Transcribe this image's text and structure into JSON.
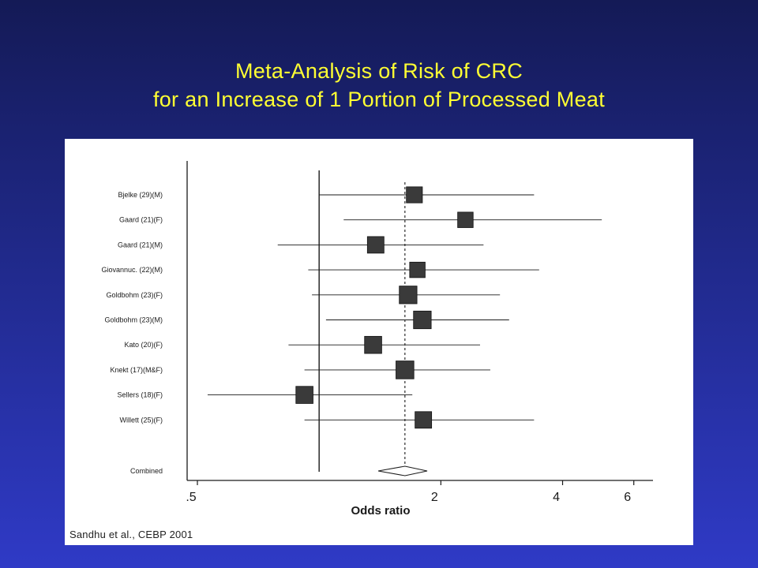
{
  "slide": {
    "title_line1": "Meta-Analysis of Risk of CRC",
    "title_line2": "for an Increase of 1 Portion of Processed Meat",
    "citation": "Sandhu et al., CEBP 2001"
  },
  "colors": {
    "title": "#ffff33",
    "background_top": "#141a56",
    "background_bottom": "#2f3ac6",
    "panel": "#ffffff",
    "ink": "#1a1a1a",
    "marker": "#3a3a3a"
  },
  "chart_data": {
    "type": "forest",
    "scale": "log",
    "xlabel": "Odds ratio",
    "xticks": [
      ".5",
      "2",
      "4",
      "6"
    ],
    "xtick_values": [
      0.5,
      2,
      4,
      6
    ],
    "xlim": [
      0.5,
      6.2
    ],
    "null_line": 1,
    "pooled_estimate": 1.63,
    "studies": [
      {
        "label": "Bjelke (29)(M)",
        "or": 1.72,
        "lo": 1.0,
        "hi": 3.4,
        "weight": 0.45
      },
      {
        "label": "Gaard (21)(F)",
        "or": 2.3,
        "lo": 1.15,
        "hi": 5.0,
        "weight": 0.4
      },
      {
        "label": "Gaard (21)(M)",
        "or": 1.38,
        "lo": 0.79,
        "hi": 2.55,
        "weight": 0.5
      },
      {
        "label": "Giovannuc. (22)(M)",
        "or": 1.75,
        "lo": 0.94,
        "hi": 3.5,
        "weight": 0.4
      },
      {
        "label": "Goldbohm (23)(F)",
        "or": 1.66,
        "lo": 0.96,
        "hi": 2.8,
        "weight": 0.6
      },
      {
        "label": "Goldbohm (23)(M)",
        "or": 1.8,
        "lo": 1.04,
        "hi": 2.95,
        "weight": 0.6
      },
      {
        "label": "Kato (20)(F)",
        "or": 1.36,
        "lo": 0.84,
        "hi": 2.5,
        "weight": 0.55
      },
      {
        "label": "Knekt (17)(M&F)",
        "or": 1.63,
        "lo": 0.92,
        "hi": 2.65,
        "weight": 0.62
      },
      {
        "label": "Sellers (18)(F)",
        "or": 0.92,
        "lo": 0.53,
        "hi": 1.7,
        "weight": 0.55
      },
      {
        "label": "Willett (25)(F)",
        "or": 1.81,
        "lo": 0.92,
        "hi": 3.4,
        "weight": 0.5
      }
    ],
    "combined": {
      "label": "Combined",
      "or": 1.63,
      "lo": 1.4,
      "hi": 1.85
    }
  }
}
